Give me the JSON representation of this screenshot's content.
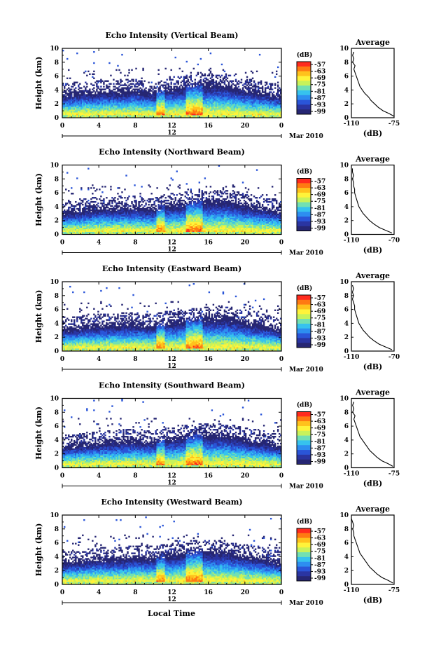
{
  "chart_data": {
    "type": "heatmap",
    "x_ticks": [
      "0",
      "4",
      "8",
      "12",
      "16",
      "20",
      "0"
    ],
    "xlim": [
      0,
      24
    ],
    "y_ticks": [
      "0",
      "2",
      "4",
      "6",
      "8",
      "10"
    ],
    "ylim": [
      0,
      10
    ],
    "ylabel": "Height (km)",
    "date_label": "12",
    "month_label": "Mar 2010",
    "xlabel": "Local Time",
    "colorbar": {
      "unit": "(dB)",
      "ticks": [
        "-57",
        "-63",
        "-69",
        "-75",
        "-81",
        "-87",
        "-93",
        "-99"
      ],
      "colors": [
        "#ff2b1e",
        "#ff7a12",
        "#ffc21c",
        "#fff33a",
        "#c8f25a",
        "#72e0b2",
        "#36c2ee",
        "#2d8ef0",
        "#2a55d8",
        "#2a35a2",
        "#262673"
      ]
    },
    "panels": [
      {
        "title": "Echo Intensity (Vertical Beam)",
        "profile_title": "Average",
        "profile_xlabel": "(dB)",
        "profile_xticks": [
          "-110",
          "-75"
        ],
        "profile_xlim": [
          -110,
          -75
        ],
        "layer_top_km": [
          3.4,
          3.7,
          3.9,
          3.8,
          4.0,
          3.6,
          4.3,
          4.6,
          4.9,
          4.8,
          4.1,
          3.7,
          3.1
        ],
        "profile": {
          "height": [
            0.2,
            0.6,
            1.0,
            1.5,
            2.0,
            2.5,
            3.0,
            3.5,
            4.0,
            4.5,
            5.0,
            5.5,
            6.0,
            6.5,
            7.0,
            7.5,
            8.0,
            8.5,
            9.0,
            9.5
          ],
          "value": [
            -75,
            -79,
            -84,
            -88,
            -91,
            -94,
            -96,
            -99,
            -101,
            -103,
            -104,
            -105,
            -106,
            -107,
            -108,
            -107,
            -109,
            -108,
            -109,
            -108
          ]
        }
      },
      {
        "title": "Echo Intensity (Northward Beam)",
        "profile_title": "Average",
        "profile_xlabel": "(dB)",
        "profile_xticks": [
          "-110",
          "-70"
        ],
        "profile_xlim": [
          -110,
          -70
        ],
        "layer_top_km": [
          3.2,
          3.5,
          3.9,
          3.9,
          4.0,
          3.7,
          4.4,
          4.6,
          4.9,
          5.0,
          4.3,
          3.9,
          3.3
        ],
        "profile": {
          "height": [
            0.2,
            0.6,
            1.0,
            1.5,
            2.0,
            2.5,
            3.0,
            3.5,
            4.0,
            4.5,
            5.0,
            5.5,
            6.0,
            6.5,
            7.0,
            7.5,
            8.0,
            8.5,
            9.0,
            9.5
          ],
          "value": [
            -72,
            -78,
            -84,
            -89,
            -93,
            -96,
            -99,
            -101,
            -103,
            -104,
            -105,
            -106,
            -107,
            -107,
            -108,
            -108,
            -109,
            -108,
            -109,
            -109
          ]
        }
      },
      {
        "title": "Echo Intensity (Eastward Beam)",
        "profile_title": "Average",
        "profile_xlabel": "(dB)",
        "profile_xticks": [
          "-110",
          "-70"
        ],
        "profile_xlim": [
          -110,
          -70
        ],
        "layer_top_km": [
          3.3,
          3.5,
          3.8,
          3.9,
          4.0,
          3.8,
          4.3,
          4.5,
          4.8,
          4.9,
          4.2,
          3.8,
          3.2
        ],
        "profile": {
          "height": [
            0.2,
            0.6,
            1.0,
            1.5,
            2.0,
            2.5,
            3.0,
            3.5,
            4.0,
            4.5,
            5.0,
            5.5,
            6.0,
            6.5,
            7.0,
            7.5,
            8.0,
            8.5,
            9.0,
            9.5
          ],
          "value": [
            -72,
            -78,
            -84,
            -89,
            -93,
            -96,
            -99,
            -101,
            -103,
            -104,
            -105,
            -106,
            -107,
            -107,
            -108,
            -109,
            -108,
            -109,
            -108,
            -109
          ]
        }
      },
      {
        "title": "Echo Intensity (Southward Beam)",
        "profile_title": "Average",
        "profile_xlabel": "(dB)",
        "profile_xticks": [
          "-110",
          "-75"
        ],
        "profile_xlim": [
          -110,
          -75
        ],
        "layer_top_km": [
          3.1,
          3.4,
          3.7,
          3.9,
          4.0,
          3.8,
          4.3,
          4.6,
          4.9,
          4.8,
          4.2,
          3.8,
          3.2
        ],
        "profile": {
          "height": [
            0.2,
            0.6,
            1.0,
            1.5,
            2.0,
            2.5,
            3.0,
            3.5,
            4.0,
            4.5,
            5.0,
            5.5,
            6.0,
            6.5,
            7.0,
            7.5,
            8.0,
            8.5,
            9.0,
            9.5
          ],
          "value": [
            -76,
            -80,
            -85,
            -89,
            -92,
            -95,
            -97,
            -99,
            -101,
            -103,
            -104,
            -105,
            -106,
            -107,
            -108,
            -107,
            -109,
            -108,
            -109,
            -108
          ]
        }
      },
      {
        "title": "Echo Intensity (Westward Beam)",
        "profile_title": "Average",
        "profile_xlabel": "(dB)",
        "profile_xticks": [
          "-110",
          "-75"
        ],
        "profile_xlim": [
          -110,
          -75
        ],
        "layer_top_km": [
          3.2,
          3.5,
          3.8,
          3.8,
          4.0,
          3.9,
          4.4,
          4.7,
          4.9,
          4.8,
          4.2,
          3.8,
          3.2
        ],
        "profile": {
          "height": [
            0.2,
            0.6,
            1.0,
            1.5,
            2.0,
            2.5,
            3.0,
            3.5,
            4.0,
            4.5,
            5.0,
            5.5,
            6.0,
            6.5,
            7.0,
            7.5,
            8.0,
            8.5,
            9.0,
            9.5
          ],
          "value": [
            -76,
            -80,
            -85,
            -89,
            -92,
            -95,
            -97,
            -99,
            -101,
            -103,
            -104,
            -105,
            -106,
            -107,
            -108,
            -108,
            -109,
            -108,
            -109,
            -110
          ]
        }
      }
    ]
  }
}
